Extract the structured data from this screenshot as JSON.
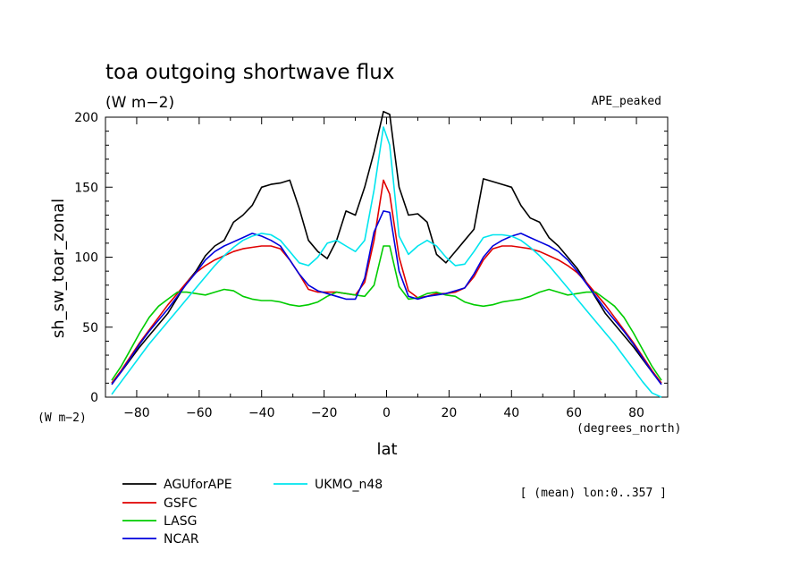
{
  "chart_data": {
    "type": "line",
    "title": "toa outgoing shortwave flux",
    "units_label": "(W m−2)",
    "experiment_label": "APE_peaked",
    "ylabel": "sh_sw_toar_zonal",
    "xlabel": "lat",
    "x_units": "(degrees_north)",
    "y_units": "(W m−2)",
    "footnote": "[ (mean) lon:0..357 ]",
    "xlim": [
      -90,
      90
    ],
    "ylim": [
      0,
      200
    ],
    "x_ticks": [
      -80,
      -60,
      -40,
      -20,
      0,
      20,
      40,
      60,
      80
    ],
    "y_ticks": [
      0,
      50,
      100,
      150,
      200
    ],
    "grid": false,
    "legend_position": "bottom-left",
    "series": [
      {
        "name": "AGUforAPE",
        "color": "#000000",
        "x": [
          -88,
          -85,
          -82,
          -79,
          -76,
          -73,
          -70,
          -67,
          -64,
          -61,
          -58,
          -55,
          -52,
          -49,
          -46,
          -43,
          -40,
          -37,
          -34,
          -31,
          -28,
          -25,
          -22,
          -19,
          -16,
          -13,
          -10,
          -7,
          -4,
          -1,
          1,
          4,
          7,
          10,
          13,
          16,
          19,
          22,
          25,
          28,
          31,
          34,
          37,
          40,
          43,
          46,
          49,
          52,
          55,
          58,
          61,
          64,
          67,
          70,
          73,
          76,
          79,
          82,
          85,
          88
        ],
        "values": [
          10,
          18,
          27,
          36,
          44,
          52,
          60,
          71,
          82,
          90,
          101,
          108,
          112,
          125,
          130,
          137,
          150,
          152,
          153,
          155,
          135,
          112,
          104,
          99,
          112,
          133,
          130,
          150,
          175,
          204,
          202,
          150,
          130,
          131,
          125,
          102,
          96,
          104,
          112,
          120,
          156,
          154,
          152,
          150,
          137,
          128,
          125,
          114,
          108,
          100,
          92,
          82,
          71,
          60,
          52,
          44,
          36,
          27,
          18,
          10
        ]
      },
      {
        "name": "GSFC",
        "color": "#e00000",
        "x": [
          -88,
          -85,
          -82,
          -79,
          -76,
          -73,
          -70,
          -67,
          -64,
          -61,
          -58,
          -55,
          -52,
          -49,
          -46,
          -43,
          -40,
          -37,
          -34,
          -31,
          -28,
          -25,
          -22,
          -19,
          -16,
          -13,
          -10,
          -7,
          -4,
          -1,
          1,
          4,
          7,
          10,
          13,
          16,
          19,
          22,
          25,
          28,
          31,
          34,
          37,
          40,
          43,
          46,
          49,
          52,
          55,
          58,
          61,
          64,
          67,
          70,
          73,
          76,
          79,
          82,
          85,
          88
        ],
        "values": [
          10,
          19,
          29,
          39,
          48,
          57,
          66,
          74,
          82,
          89,
          94,
          98,
          101,
          104,
          106,
          107,
          108,
          108,
          106,
          98,
          88,
          77,
          75,
          75,
          75,
          74,
          73,
          82,
          112,
          155,
          145,
          100,
          76,
          71,
          72,
          74,
          74,
          75,
          78,
          86,
          98,
          106,
          108,
          108,
          107,
          106,
          104,
          101,
          98,
          94,
          89,
          82,
          74,
          66,
          57,
          48,
          39,
          29,
          19,
          10
        ]
      },
      {
        "name": "LASG",
        "color": "#00cc00",
        "x": [
          -88,
          -85,
          -82,
          -79,
          -76,
          -73,
          -70,
          -67,
          -64,
          -61,
          -58,
          -55,
          -52,
          -49,
          -46,
          -43,
          -40,
          -37,
          -34,
          -31,
          -28,
          -25,
          -22,
          -19,
          -16,
          -13,
          -10,
          -7,
          -4,
          -1,
          1,
          4,
          7,
          10,
          13,
          16,
          19,
          22,
          25,
          28,
          31,
          34,
          37,
          40,
          43,
          46,
          49,
          52,
          55,
          58,
          61,
          64,
          67,
          70,
          73,
          76,
          79,
          82,
          85,
          88
        ],
        "values": [
          12,
          22,
          34,
          46,
          57,
          65,
          70,
          75,
          75,
          74,
          73,
          75,
          77,
          76,
          72,
          70,
          69,
          69,
          68,
          66,
          65,
          66,
          68,
          72,
          75,
          74,
          73,
          72,
          80,
          108,
          108,
          79,
          70,
          71,
          74,
          75,
          73,
          72,
          68,
          66,
          65,
          66,
          68,
          69,
          70,
          72,
          75,
          77,
          75,
          73,
          74,
          75,
          75,
          70,
          65,
          57,
          46,
          34,
          22,
          12
        ]
      },
      {
        "name": "NCAR",
        "color": "#0000dd",
        "x": [
          -88,
          -85,
          -82,
          -79,
          -76,
          -73,
          -70,
          -67,
          -64,
          -61,
          -58,
          -55,
          -52,
          -49,
          -46,
          -43,
          -40,
          -37,
          -34,
          -31,
          -28,
          -25,
          -22,
          -19,
          -16,
          -13,
          -10,
          -7,
          -4,
          -1,
          1,
          4,
          7,
          10,
          13,
          16,
          19,
          22,
          25,
          28,
          31,
          34,
          37,
          40,
          43,
          46,
          49,
          52,
          55,
          58,
          61,
          64,
          67,
          70,
          73,
          76,
          79,
          82,
          85,
          88
        ],
        "values": [
          9,
          18,
          28,
          38,
          47,
          55,
          63,
          72,
          81,
          89,
          98,
          104,
          108,
          111,
          114,
          117,
          115,
          112,
          108,
          98,
          88,
          80,
          76,
          74,
          72,
          70,
          70,
          85,
          118,
          133,
          132,
          90,
          72,
          70,
          72,
          73,
          74,
          76,
          78,
          88,
          100,
          108,
          112,
          115,
          117,
          114,
          111,
          108,
          104,
          98,
          90,
          81,
          72,
          63,
          55,
          47,
          38,
          28,
          18,
          9
        ]
      },
      {
        "name": "UKMO_n48",
        "color": "#00e5ee",
        "x": [
          -88,
          -85,
          -82,
          -79,
          -76,
          -73,
          -70,
          -67,
          -64,
          -61,
          -58,
          -55,
          -52,
          -49,
          -46,
          -43,
          -40,
          -37,
          -34,
          -31,
          -28,
          -25,
          -22,
          -19,
          -16,
          -13,
          -10,
          -7,
          -4,
          -1,
          1,
          4,
          7,
          10,
          13,
          16,
          19,
          22,
          25,
          28,
          31,
          34,
          37,
          40,
          43,
          46,
          49,
          52,
          55,
          58,
          61,
          64,
          67,
          70,
          73,
          76,
          79,
          82,
          85,
          88
        ],
        "values": [
          2,
          11,
          20,
          29,
          38,
          46,
          54,
          62,
          70,
          78,
          86,
          94,
          101,
          107,
          112,
          115,
          117,
          116,
          112,
          104,
          96,
          94,
          100,
          110,
          112,
          108,
          104,
          112,
          148,
          193,
          180,
          115,
          102,
          108,
          112,
          108,
          100,
          94,
          95,
          104,
          114,
          116,
          116,
          115,
          112,
          107,
          101,
          94,
          86,
          78,
          70,
          62,
          54,
          46,
          38,
          29,
          20,
          11,
          3,
          0
        ]
      }
    ]
  }
}
